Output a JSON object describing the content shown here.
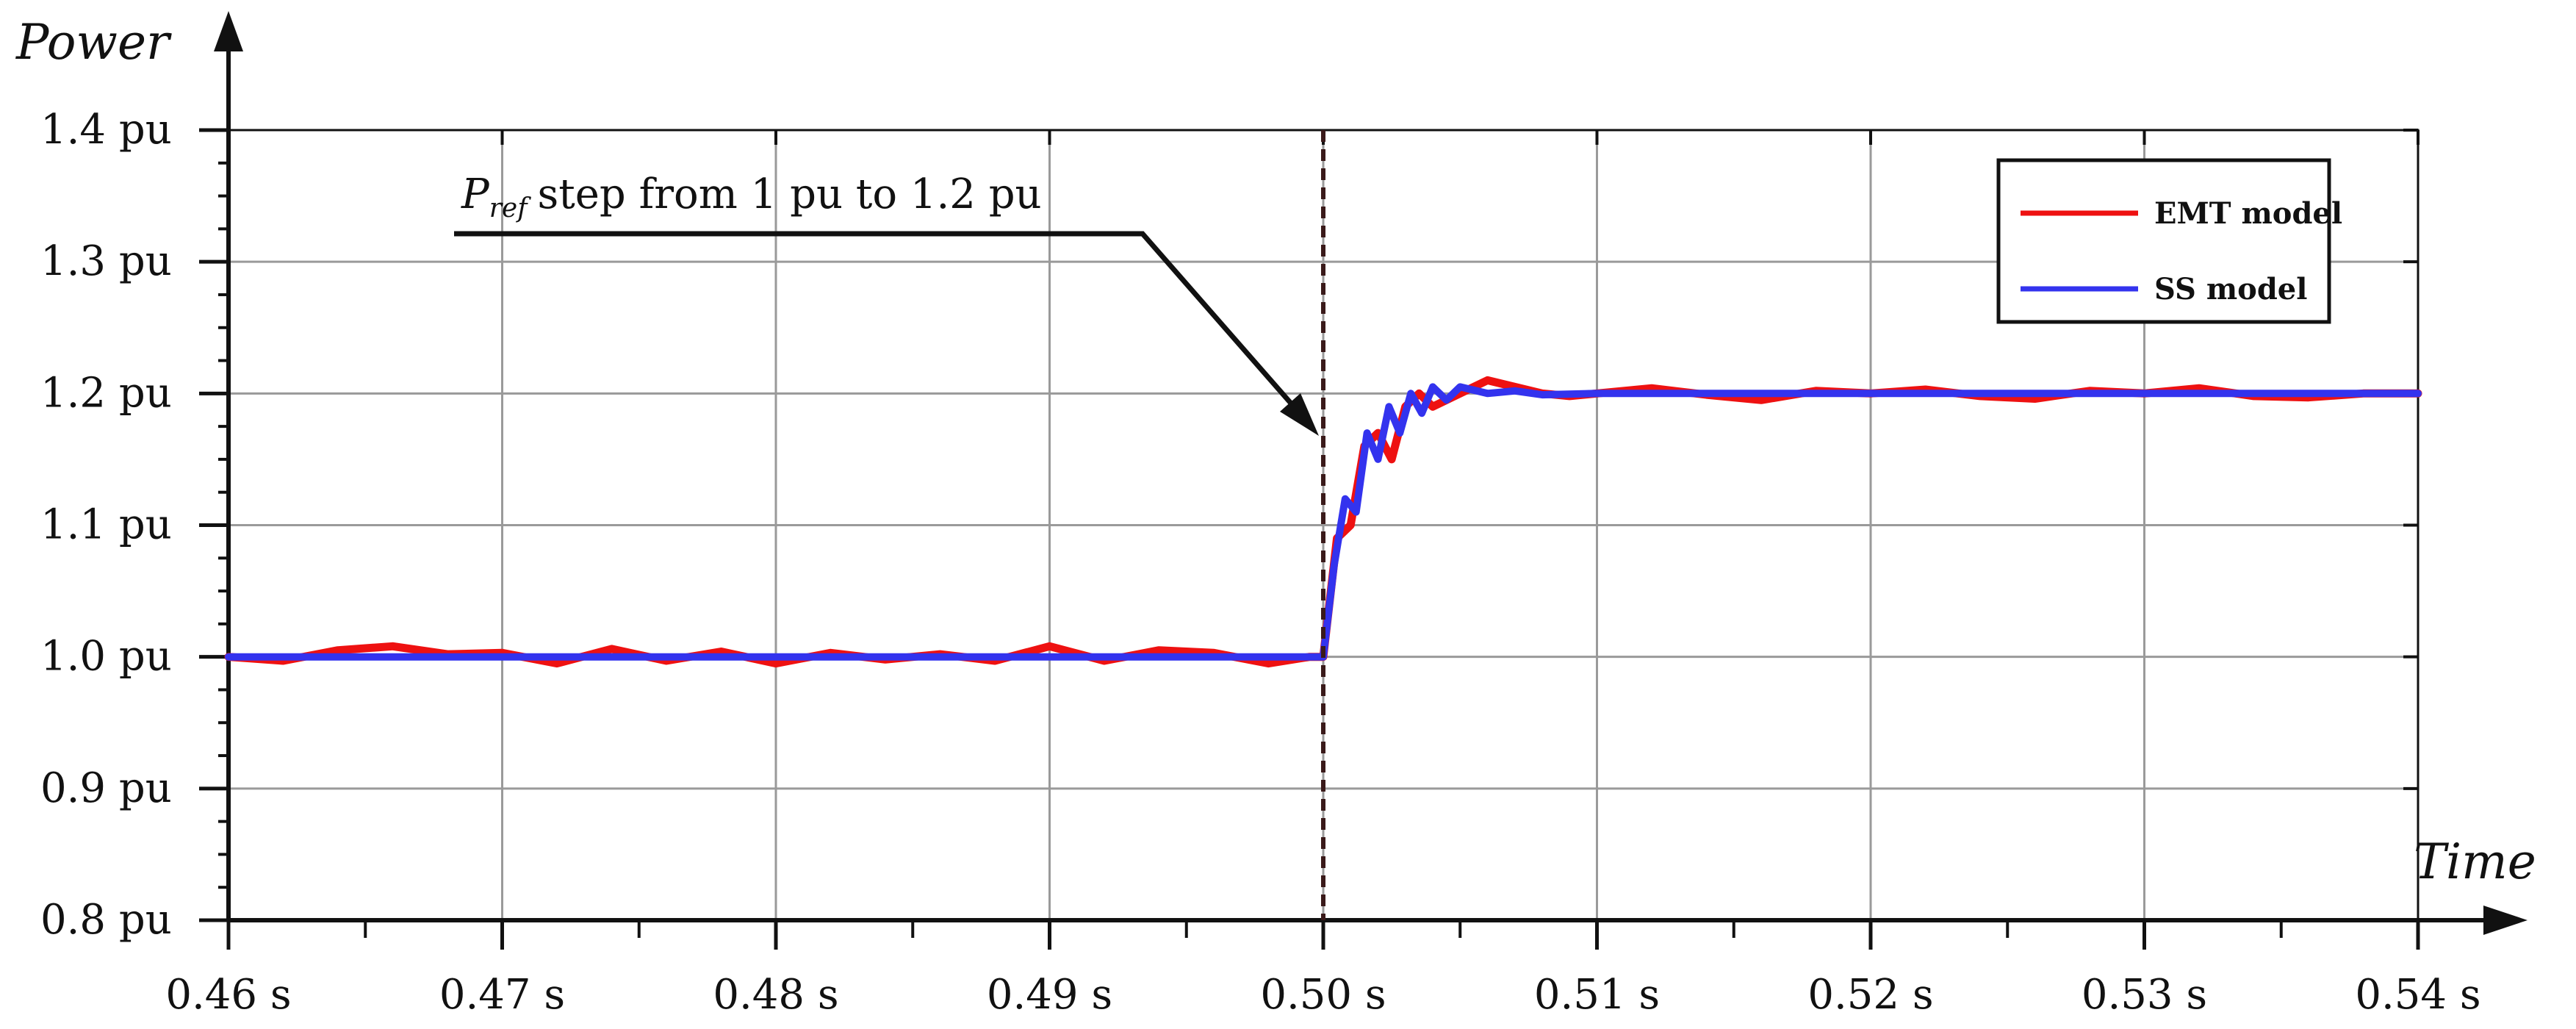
{
  "chart_data": {
    "type": "line",
    "xlabel": "Time",
    "ylabel": "Power",
    "xlim": [
      0.46,
      0.54
    ],
    "ylim": [
      0.8,
      1.4
    ],
    "x_ticks": [
      "0.46 s",
      "0.47 s",
      "0.48 s",
      "0.49 s",
      "0.50 s",
      "0.51 s",
      "0.52 s",
      "0.53 s",
      "0.54 s"
    ],
    "y_ticks": [
      "0.8 pu",
      "0.9 pu",
      "1.0 pu",
      "1.1 pu",
      "1.2 pu",
      "1.3 pu",
      "1.4 pu"
    ],
    "grid": true,
    "legend_position": "top-right",
    "annotation": {
      "symbol": "P",
      "subscript": "ref",
      "text": "step from 1 pu to 1.2 pu",
      "x": 0.5
    },
    "series": [
      {
        "name": "EMT model",
        "color": "#ee1111",
        "x": [
          0.46,
          0.462,
          0.464,
          0.466,
          0.468,
          0.47,
          0.472,
          0.474,
          0.476,
          0.478,
          0.48,
          0.482,
          0.484,
          0.486,
          0.488,
          0.49,
          0.492,
          0.494,
          0.496,
          0.498,
          0.4995,
          0.5,
          0.5005,
          0.501,
          0.5015,
          0.502,
          0.5025,
          0.503,
          0.5035,
          0.504,
          0.505,
          0.506,
          0.507,
          0.508,
          0.509,
          0.51,
          0.512,
          0.514,
          0.516,
          0.518,
          0.52,
          0.522,
          0.524,
          0.526,
          0.528,
          0.53,
          0.532,
          0.534,
          0.536,
          0.538,
          0.54
        ],
        "y": [
          1.0,
          0.997,
          1.005,
          1.008,
          1.002,
          1.003,
          0.995,
          1.006,
          0.997,
          1.004,
          0.995,
          1.003,
          0.998,
          1.002,
          0.997,
          1.008,
          0.997,
          1.005,
          1.003,
          0.995,
          1.0,
          1.0,
          1.09,
          1.1,
          1.16,
          1.17,
          1.15,
          1.19,
          1.2,
          1.19,
          1.2,
          1.21,
          1.205,
          1.2,
          1.198,
          1.2,
          1.204,
          1.199,
          1.195,
          1.202,
          1.2,
          1.203,
          1.198,
          1.196,
          1.202,
          1.2,
          1.204,
          1.198,
          1.197,
          1.2,
          1.2
        ]
      },
      {
        "name": "SS model",
        "color": "#3333ee",
        "x": [
          0.46,
          0.47,
          0.48,
          0.49,
          0.4995,
          0.5,
          0.5004,
          0.5008,
          0.5012,
          0.5016,
          0.502,
          0.5024,
          0.5028,
          0.5032,
          0.5036,
          0.504,
          0.5045,
          0.505,
          0.506,
          0.507,
          0.508,
          0.51,
          0.515,
          0.52,
          0.525,
          0.53,
          0.535,
          0.54
        ],
        "y": [
          1.0,
          1.0,
          1.0,
          1.0,
          1.0,
          1.0,
          1.07,
          1.12,
          1.11,
          1.17,
          1.15,
          1.19,
          1.17,
          1.2,
          1.185,
          1.205,
          1.195,
          1.205,
          1.2,
          1.202,
          1.199,
          1.2,
          1.2,
          1.2,
          1.2,
          1.2,
          1.2,
          1.2
        ]
      }
    ]
  }
}
